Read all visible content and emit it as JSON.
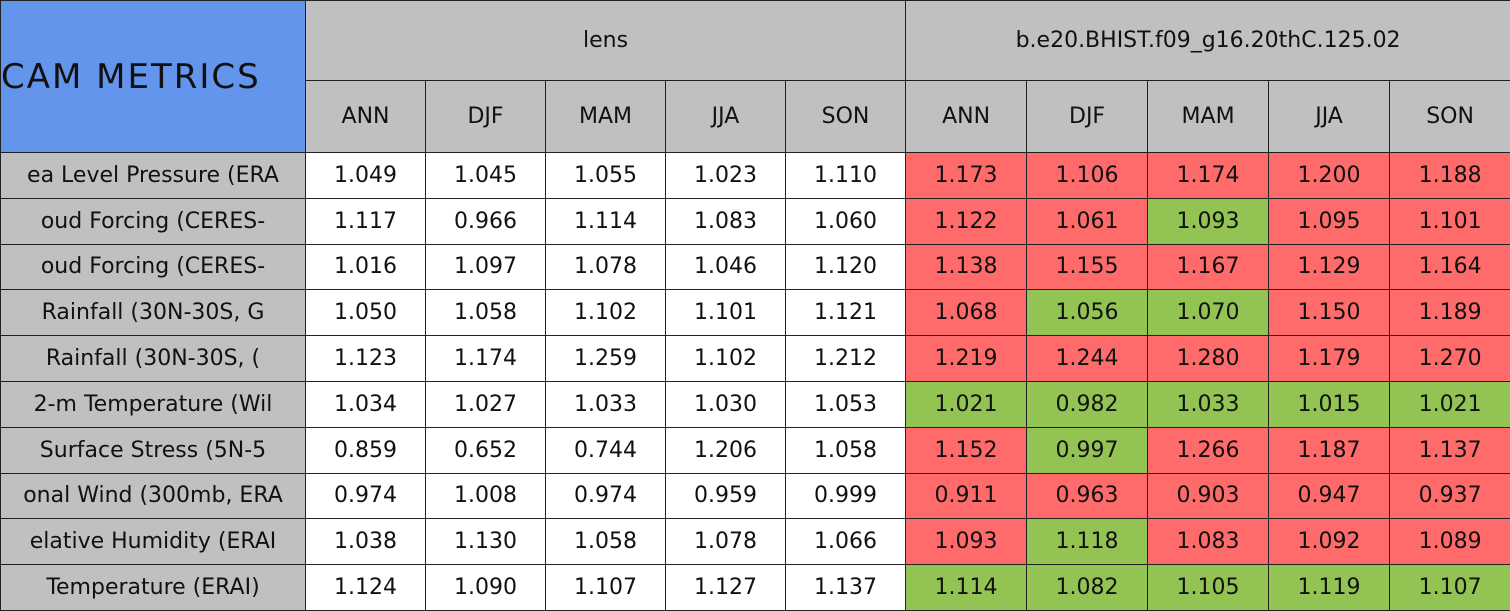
{
  "header": {
    "title": "CAM METRICS",
    "groups": [
      "lens",
      "b.e20.BHIST.f09_g16.20thC.125.02"
    ],
    "seasons": [
      "ANN",
      "DJF",
      "MAM",
      "JJA",
      "SON"
    ]
  },
  "table": {
    "rows": [
      {
        "label": "ea Level Pressure (ERA",
        "lens": [
          "1.049",
          "1.045",
          "1.055",
          "1.023",
          "1.110"
        ],
        "case": [
          "1.173",
          "1.106",
          "1.174",
          "1.200",
          "1.188"
        ],
        "colors": [
          "#ff6b6b",
          "#ff6b6b",
          "#ff6b6b",
          "#ff6b6b",
          "#ff6b6b"
        ]
      },
      {
        "label": "oud Forcing (CERES-",
        "lens": [
          "1.117",
          "0.966",
          "1.114",
          "1.083",
          "1.060"
        ],
        "case": [
          "1.122",
          "1.061",
          "1.093",
          "1.095",
          "1.101"
        ],
        "colors": [
          "#ff6b6b",
          "#ff6b6b",
          "#92c353",
          "#ff6b6b",
          "#ff6b6b"
        ]
      },
      {
        "label": "oud Forcing (CERES-",
        "lens": [
          "1.016",
          "1.097",
          "1.078",
          "1.046",
          "1.120"
        ],
        "case": [
          "1.138",
          "1.155",
          "1.167",
          "1.129",
          "1.164"
        ],
        "colors": [
          "#ff6b6b",
          "#ff6b6b",
          "#ff6b6b",
          "#ff6b6b",
          "#ff6b6b"
        ]
      },
      {
        "label": "Rainfall (30N-30S, G",
        "lens": [
          "1.050",
          "1.058",
          "1.102",
          "1.101",
          "1.121"
        ],
        "case": [
          "1.068",
          "1.056",
          "1.070",
          "1.150",
          "1.189"
        ],
        "colors": [
          "#ff6b6b",
          "#92c353",
          "#92c353",
          "#ff6b6b",
          "#ff6b6b"
        ]
      },
      {
        "label": "Rainfall (30N-30S, (",
        "lens": [
          "1.123",
          "1.174",
          "1.259",
          "1.102",
          "1.212"
        ],
        "case": [
          "1.219",
          "1.244",
          "1.280",
          "1.179",
          "1.270"
        ],
        "colors": [
          "#ff6b6b",
          "#ff6b6b",
          "#ff6b6b",
          "#ff6b6b",
          "#ff6b6b"
        ]
      },
      {
        "label": "2-m Temperature (Wil",
        "lens": [
          "1.034",
          "1.027",
          "1.033",
          "1.030",
          "1.053"
        ],
        "case": [
          "1.021",
          "0.982",
          "1.033",
          "1.015",
          "1.021"
        ],
        "colors": [
          "#92c353",
          "#92c353",
          "#92c353",
          "#92c353",
          "#92c353"
        ]
      },
      {
        "label": "Surface Stress (5N-5",
        "lens": [
          "0.859",
          "0.652",
          "0.744",
          "1.206",
          "1.058"
        ],
        "case": [
          "1.152",
          "0.997",
          "1.266",
          "1.187",
          "1.137"
        ],
        "colors": [
          "#ff6b6b",
          "#92c353",
          "#ff6b6b",
          "#ff6b6b",
          "#ff6b6b"
        ]
      },
      {
        "label": "onal Wind (300mb, ERA",
        "lens": [
          "0.974",
          "1.008",
          "0.974",
          "0.959",
          "0.999"
        ],
        "case": [
          "0.911",
          "0.963",
          "0.903",
          "0.947",
          "0.937"
        ],
        "colors": [
          "#ff6b6b",
          "#ff6b6b",
          "#ff6b6b",
          "#ff6b6b",
          "#ff6b6b"
        ]
      },
      {
        "label": "elative Humidity (ERAI",
        "lens": [
          "1.038",
          "1.130",
          "1.058",
          "1.078",
          "1.066"
        ],
        "case": [
          "1.093",
          "1.118",
          "1.083",
          "1.092",
          "1.089"
        ],
        "colors": [
          "#ff6b6b",
          "#92c353",
          "#ff6b6b",
          "#ff6b6b",
          "#ff6b6b"
        ]
      },
      {
        "label": "Temperature (ERAI)",
        "lens": [
          "1.124",
          "1.090",
          "1.107",
          "1.127",
          "1.137"
        ],
        "case": [
          "1.114",
          "1.082",
          "1.105",
          "1.119",
          "1.107"
        ],
        "colors": [
          "#92c353",
          "#92c353",
          "#92c353",
          "#92c353",
          "#92c353"
        ]
      }
    ]
  }
}
